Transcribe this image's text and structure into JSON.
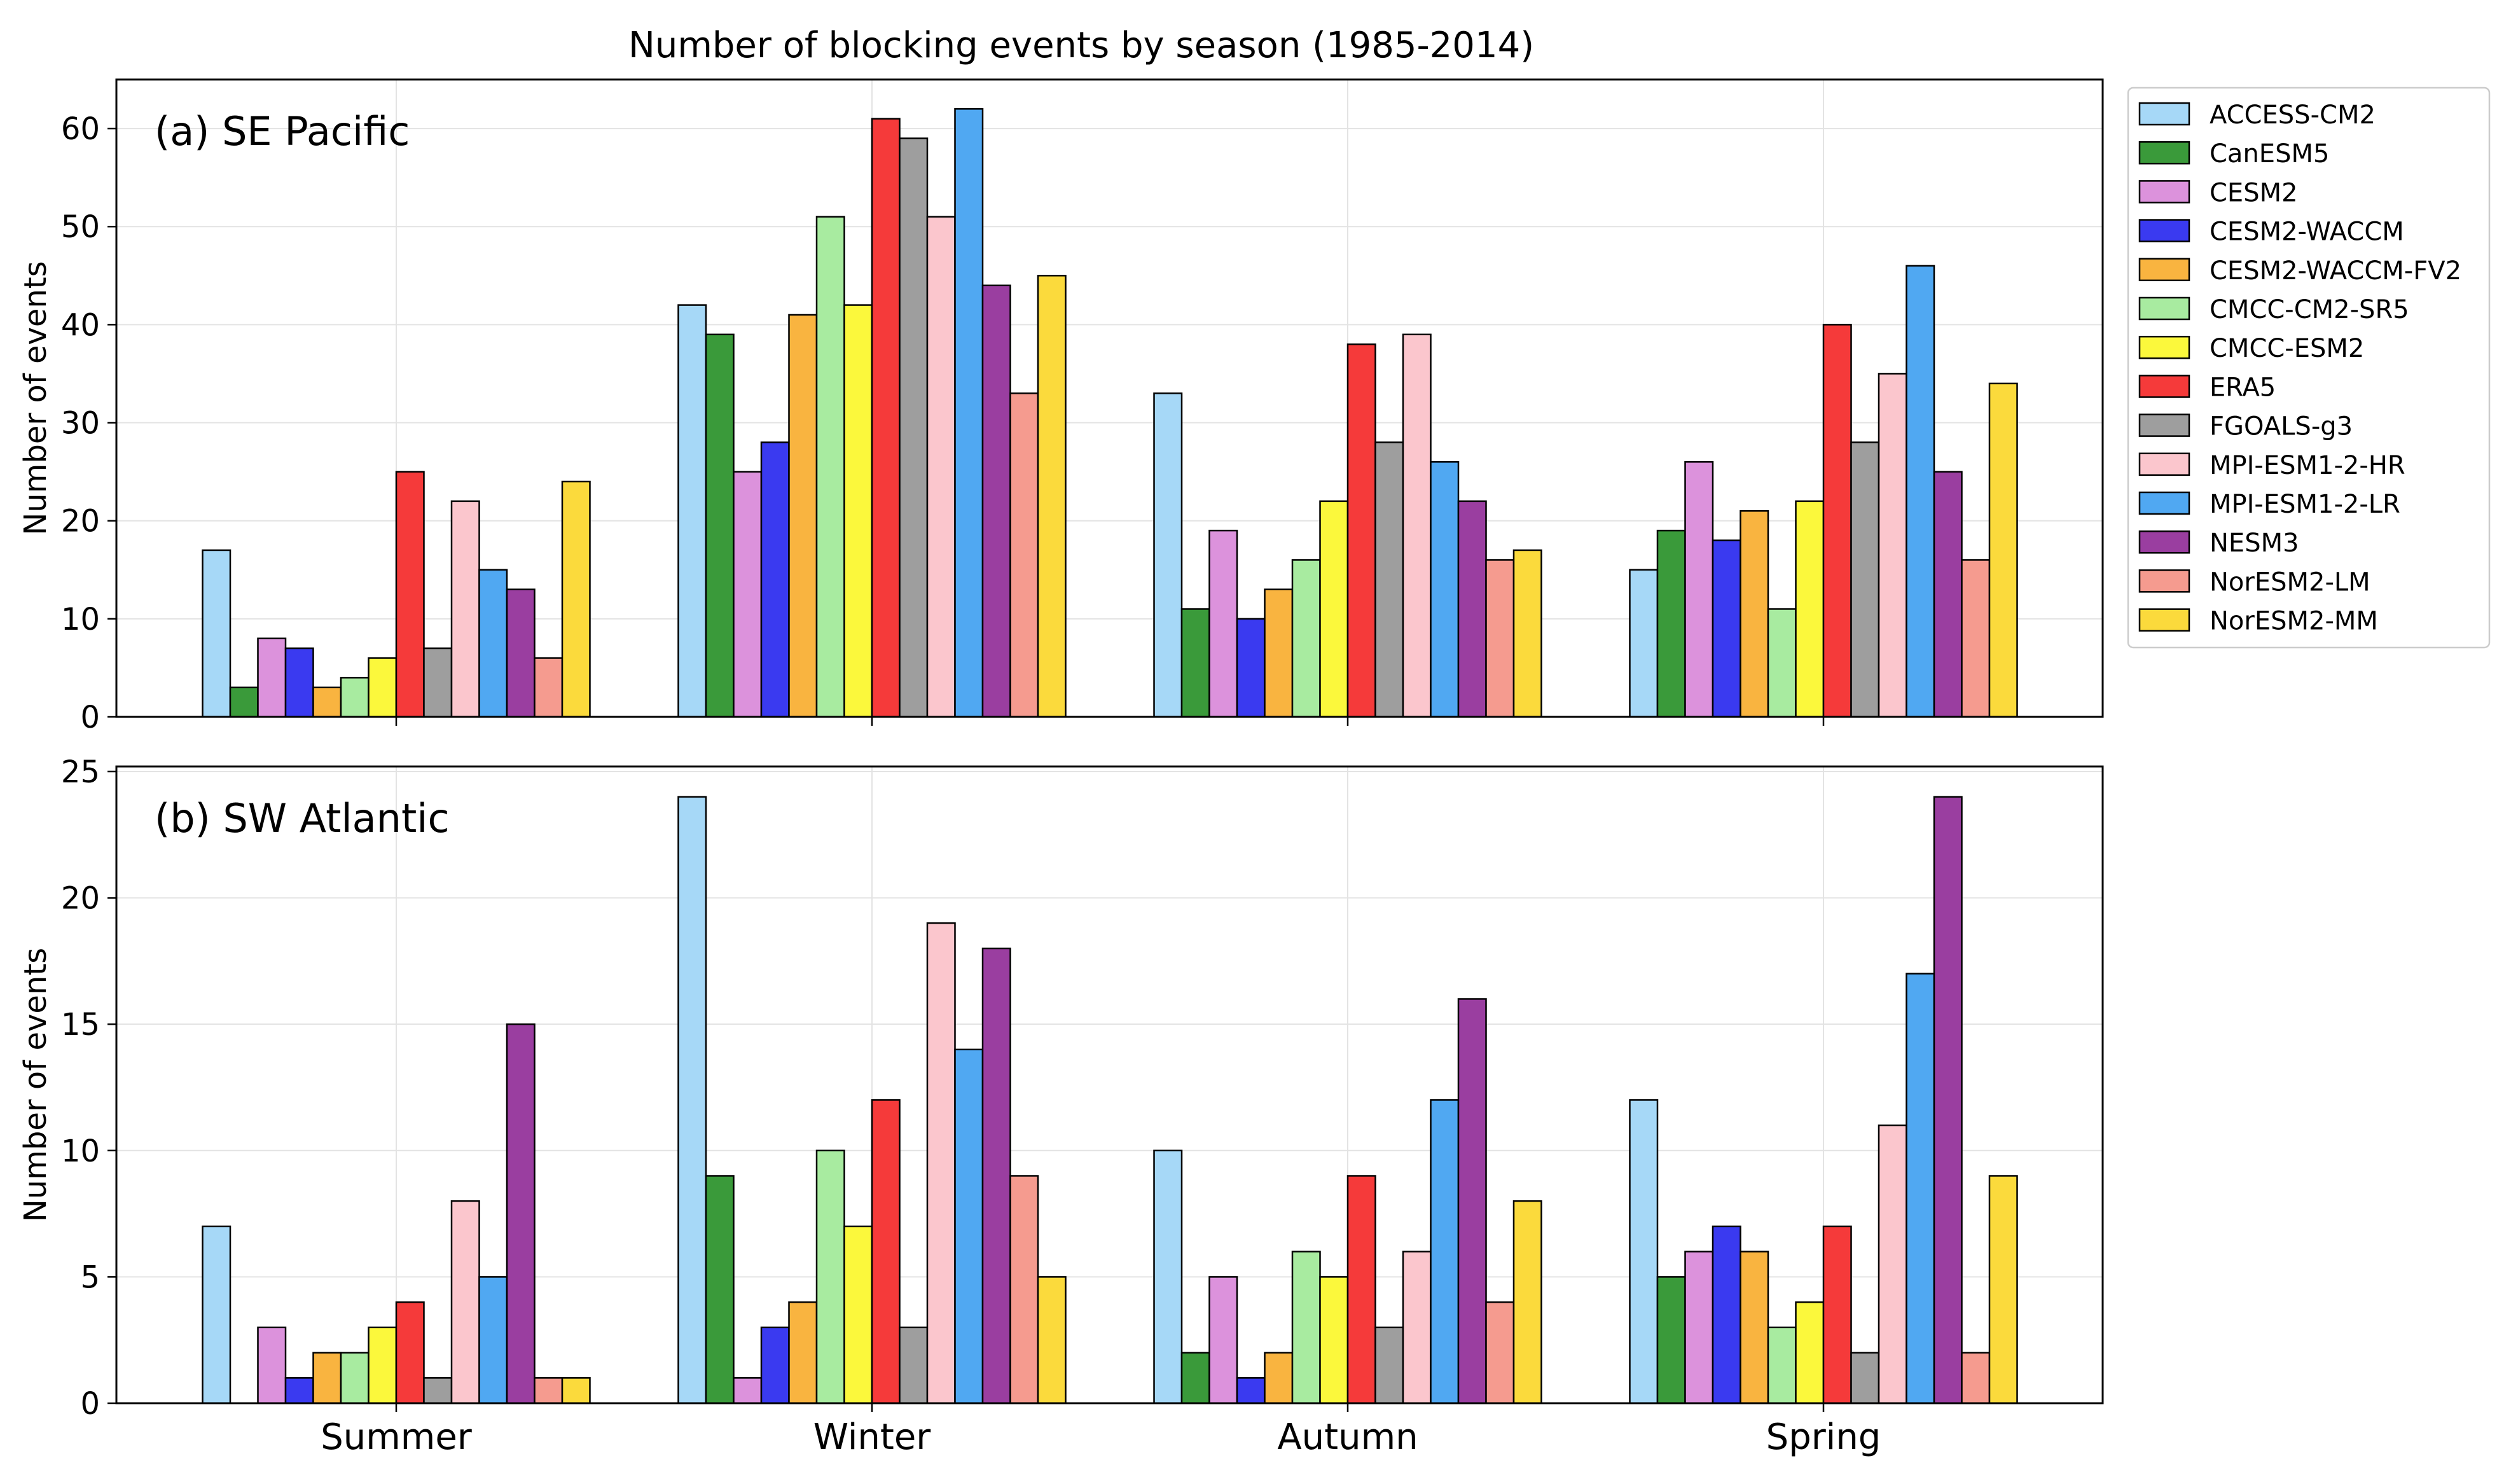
{
  "title": "Number of blocking events by season (1985-2014)",
  "colors": {
    "ACCESS-CM2": "#a6d8f7",
    "CanESM5": "#3a9a3a",
    "CESM2": "#dc92dc",
    "CESM2-WACCM": "#3a3af0",
    "CESM2-WACCM-FV2": "#f9b440",
    "CMCC-CM2-SR5": "#a8eba0",
    "CMCC-ESM2": "#fbf83c",
    "ERA5": "#f53a3a",
    "FGOALS-g3": "#9e9e9e",
    "MPI-ESM1-2-HR": "#fbc6cd",
    "MPI-ESM1-2-LR": "#50a8f2",
    "NESM3": "#9a3ea0",
    "NorESM2-LM": "#f59b8f",
    "NorESM2-MM": "#fbda3c"
  },
  "chart_data": [
    {
      "type": "bar",
      "panel_label": "(a) SE Pacific",
      "ylabel": "Number of events",
      "ylim": [
        0,
        65
      ],
      "yticks": [
        "0",
        "10",
        "20",
        "30",
        "40",
        "50",
        "60"
      ],
      "categories": [
        "Summer",
        "Winter",
        "Autumn",
        "Spring"
      ],
      "show_xticklabels": false,
      "grid": true,
      "series": [
        {
          "name": "ACCESS-CM2",
          "values": [
            17,
            42,
            33,
            15
          ]
        },
        {
          "name": "CanESM5",
          "values": [
            3,
            39,
            11,
            19
          ]
        },
        {
          "name": "CESM2",
          "values": [
            8,
            25,
            19,
            26
          ]
        },
        {
          "name": "CESM2-WACCM",
          "values": [
            7,
            28,
            10,
            18
          ]
        },
        {
          "name": "CESM2-WACCM-FV2",
          "values": [
            3,
            41,
            13,
            21
          ]
        },
        {
          "name": "CMCC-CM2-SR5",
          "values": [
            4,
            51,
            16,
            11
          ]
        },
        {
          "name": "CMCC-ESM2",
          "values": [
            6,
            42,
            22,
            22
          ]
        },
        {
          "name": "ERA5",
          "values": [
            25,
            61,
            38,
            40
          ]
        },
        {
          "name": "FGOALS-g3",
          "values": [
            7,
            59,
            28,
            28
          ]
        },
        {
          "name": "MPI-ESM1-2-HR",
          "values": [
            22,
            51,
            39,
            35
          ]
        },
        {
          "name": "MPI-ESM1-2-LR",
          "values": [
            15,
            62,
            26,
            46
          ]
        },
        {
          "name": "NESM3",
          "values": [
            13,
            44,
            22,
            25
          ]
        },
        {
          "name": "NorESM2-LM",
          "values": [
            6,
            33,
            16,
            16
          ]
        },
        {
          "name": "NorESM2-MM",
          "values": [
            24,
            45,
            17,
            34
          ]
        }
      ]
    },
    {
      "type": "bar",
      "panel_label": "(b) SW Atlantic",
      "ylabel": "Number of events",
      "ylim": [
        0,
        25.2
      ],
      "yticks": [
        "0",
        "5",
        "10",
        "15",
        "20",
        "25"
      ],
      "categories": [
        "Summer",
        "Winter",
        "Autumn",
        "Spring"
      ],
      "show_xticklabels": true,
      "grid": true,
      "series": [
        {
          "name": "ACCESS-CM2",
          "values": [
            7,
            24,
            10,
            12
          ]
        },
        {
          "name": "CanESM5",
          "values": [
            0,
            9,
            2,
            5
          ]
        },
        {
          "name": "CESM2",
          "values": [
            3,
            1,
            5,
            6
          ]
        },
        {
          "name": "CESM2-WACCM",
          "values": [
            1,
            3,
            1,
            7
          ]
        },
        {
          "name": "CESM2-WACCM-FV2",
          "values": [
            2,
            4,
            2,
            6
          ]
        },
        {
          "name": "CMCC-CM2-SR5",
          "values": [
            2,
            10,
            6,
            3
          ]
        },
        {
          "name": "CMCC-ESM2",
          "values": [
            3,
            7,
            5,
            4
          ]
        },
        {
          "name": "ERA5",
          "values": [
            4,
            12,
            9,
            7
          ]
        },
        {
          "name": "FGOALS-g3",
          "values": [
            1,
            3,
            3,
            2
          ]
        },
        {
          "name": "MPI-ESM1-2-HR",
          "values": [
            8,
            19,
            6,
            11
          ]
        },
        {
          "name": "MPI-ESM1-2-LR",
          "values": [
            5,
            14,
            12,
            17
          ]
        },
        {
          "name": "NESM3",
          "values": [
            15,
            18,
            16,
            24
          ]
        },
        {
          "name": "NorESM2-LM",
          "values": [
            1,
            9,
            4,
            2
          ]
        },
        {
          "name": "NorESM2-MM",
          "values": [
            1,
            5,
            8,
            9
          ]
        }
      ]
    }
  ],
  "legend": {
    "placement": "outside-right-top",
    "entries": [
      "ACCESS-CM2",
      "CanESM5",
      "CESM2",
      "CESM2-WACCM",
      "CESM2-WACCM-FV2",
      "CMCC-CM2-SR5",
      "CMCC-ESM2",
      "ERA5",
      "FGOALS-g3",
      "MPI-ESM1-2-HR",
      "MPI-ESM1-2-LR",
      "NESM3",
      "NorESM2-LM",
      "NorESM2-MM"
    ]
  }
}
